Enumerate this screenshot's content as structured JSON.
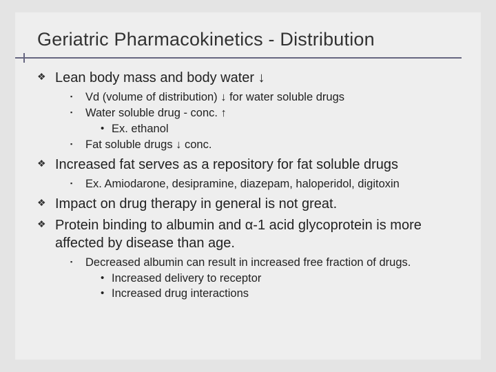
{
  "colors": {
    "bg": "#e4e4e4",
    "panel": "#eeeeee",
    "rule": "#666680",
    "title": "#323232",
    "body": "#222222"
  },
  "title": "Geriatric Pharmacokinetics - Distribution",
  "b": {
    "p0": "Lean body mass and body water ↓",
    "p0s0": "Vd (volume of distribution) ↓ for water soluble drugs",
    "p0s1": "Water soluble drug  - conc. ↑",
    "p0s1a": "Ex. ethanol",
    "p0s2": "Fat  soluble drugs ↓ conc.",
    "p1": "Increased fat serves as a repository for fat soluble drugs",
    "p1s0": "Ex. Amiodarone, desipramine, diazepam, haloperidol, digitoxin",
    "p2": "Impact on drug therapy in general is not great.",
    "p3": "Protein binding to albumin and α-1 acid glycoprotein is more affected by disease than age.",
    "p3s0": "Decreased albumin can result in increased free fraction of drugs.",
    "p3s0a": "Increased delivery to receptor",
    "p3s0b": "Increased drug interactions"
  }
}
